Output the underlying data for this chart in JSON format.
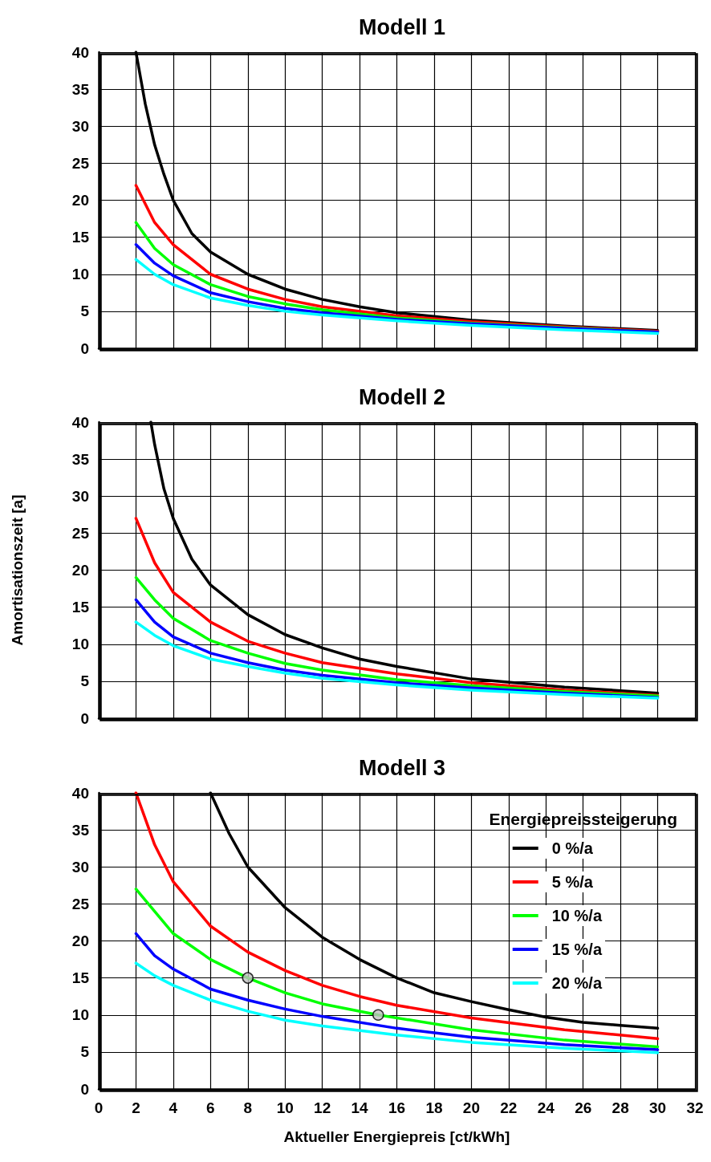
{
  "chart_data": [
    {
      "type": "line",
      "title": "Modell 1",
      "xlim": [
        0,
        32
      ],
      "xticks": [
        0,
        2,
        4,
        6,
        8,
        10,
        12,
        14,
        16,
        18,
        20,
        22,
        24,
        26,
        28,
        30,
        32
      ],
      "ylim": [
        0,
        40
      ],
      "yticks": [
        0,
        5,
        10,
        15,
        20,
        25,
        30,
        35,
        40
      ],
      "grid": true,
      "tick_labels": "y",
      "legend": false,
      "marker": "none",
      "line_style": "solid",
      "x": [
        2,
        2.5,
        3,
        3.5,
        4,
        5,
        6,
        8,
        10,
        12,
        14,
        16,
        20,
        25,
        30
      ],
      "series": [
        {
          "color": "#000000",
          "values": [
            40,
            33,
            27.5,
            23.5,
            20,
            15.5,
            13,
            10,
            8,
            6.6,
            5.6,
            4.8,
            3.8,
            3,
            2.4
          ]
        },
        {
          "color": "#ff0000",
          "x": [
            2,
            3,
            4,
            6,
            8,
            10,
            12,
            16,
            20,
            25,
            30
          ],
          "values": [
            22,
            17,
            14,
            10,
            8,
            6.6,
            5.6,
            4.4,
            3.6,
            2.9,
            2.3
          ]
        },
        {
          "color": "#00ff00",
          "x": [
            2,
            3,
            4,
            6,
            8,
            10,
            12,
            16,
            20,
            25,
            30
          ],
          "values": [
            17,
            13.5,
            11.3,
            8.6,
            7,
            6,
            5.2,
            4.1,
            3.4,
            2.8,
            2.2
          ]
        },
        {
          "color": "#0000ff",
          "x": [
            2,
            3,
            4,
            6,
            8,
            10,
            12,
            16,
            20,
            25,
            30
          ],
          "values": [
            14,
            11.5,
            9.8,
            7.5,
            6.3,
            5.4,
            4.8,
            3.9,
            3.3,
            2.7,
            2.2
          ]
        },
        {
          "color": "#00ffff",
          "x": [
            2,
            3,
            4,
            6,
            8,
            10,
            12,
            16,
            20,
            25,
            30
          ],
          "values": [
            12,
            10,
            8.6,
            6.8,
            5.8,
            5,
            4.5,
            3.7,
            3.1,
            2.5,
            2
          ]
        }
      ]
    },
    {
      "type": "line",
      "title": "Modell 2",
      "ylabel": "Amortisationszeit [a]",
      "xlim": [
        0,
        32
      ],
      "xticks": [
        0,
        2,
        4,
        6,
        8,
        10,
        12,
        14,
        16,
        18,
        20,
        22,
        24,
        26,
        28,
        30,
        32
      ],
      "ylim": [
        0,
        40
      ],
      "yticks": [
        0,
        5,
        10,
        15,
        20,
        25,
        30,
        35,
        40
      ],
      "grid": true,
      "tick_labels": "y",
      "legend": false,
      "marker": "none",
      "line_style": "solid",
      "x": [
        2,
        3,
        4,
        6,
        8,
        10,
        12,
        16,
        20,
        25,
        30
      ],
      "series": [
        {
          "color": "#000000",
          "x": [
            2.8,
            3,
            3.5,
            4,
            5,
            6,
            8,
            10,
            12,
            14,
            16,
            20,
            25,
            30
          ],
          "values": [
            40,
            37,
            31,
            27,
            21.5,
            18,
            14,
            11.3,
            9.5,
            8,
            7,
            5.3,
            4.2,
            3.4
          ]
        },
        {
          "color": "#ff0000",
          "values": [
            27,
            21,
            17,
            13,
            10.4,
            8.8,
            7.5,
            6,
            4.8,
            3.8,
            3.1
          ]
        },
        {
          "color": "#00ff00",
          "values": [
            19,
            16,
            13.5,
            10.5,
            8.8,
            7.4,
            6.5,
            5.2,
            4.4,
            3.6,
            3
          ]
        },
        {
          "color": "#0000ff",
          "values": [
            16,
            13,
            11,
            8.8,
            7.5,
            6.5,
            5.8,
            4.8,
            4.1,
            3.4,
            2.8
          ]
        },
        {
          "color": "#00ffff",
          "values": [
            13,
            11.2,
            9.8,
            8,
            7,
            6.1,
            5.4,
            4.5,
            3.8,
            3.2,
            2.7
          ]
        }
      ]
    },
    {
      "type": "line",
      "title": "Modell 3",
      "xlabel": "Aktueller Energiepreis [ct/kWh]",
      "legend_title": "Energiepreissteigerung",
      "xlim": [
        0,
        32
      ],
      "xticks": [
        0,
        2,
        4,
        6,
        8,
        10,
        12,
        14,
        16,
        18,
        20,
        22,
        24,
        26,
        28,
        30,
        32
      ],
      "ylim": [
        0,
        40
      ],
      "yticks": [
        0,
        5,
        10,
        15,
        20,
        25,
        30,
        35,
        40
      ],
      "grid": true,
      "legend": "top right",
      "marker": "none",
      "line_style": "solid",
      "x": [
        2,
        3,
        4,
        5,
        6,
        8,
        10,
        12,
        14,
        16,
        20,
        25,
        30
      ],
      "series": [
        {
          "name": "0 %/a",
          "color": "#000000",
          "x": [
            6,
            7,
            8,
            10,
            12,
            14,
            16,
            18,
            20,
            22,
            24,
            26,
            28,
            30
          ],
          "values": [
            40,
            34.5,
            30,
            24.5,
            20.5,
            17.5,
            15,
            13,
            11.8,
            10.7,
            9.7,
            9,
            8.6,
            8.2
          ]
        },
        {
          "name": "5 %/a",
          "color": "#ff0000",
          "values": [
            40,
            33,
            28,
            25,
            22,
            18.5,
            16,
            14,
            12.5,
            11.3,
            9.6,
            8,
            6.8
          ]
        },
        {
          "name": "10 %/a",
          "color": "#00ff00",
          "x": [
            2,
            3,
            4,
            6,
            8,
            10,
            12,
            15,
            20,
            25,
            30
          ],
          "values": [
            27,
            24,
            21,
            17.5,
            15,
            13,
            11.5,
            10,
            8,
            6.6,
            5.7
          ]
        },
        {
          "name": "15 %/a",
          "color": "#0000ff",
          "x": [
            2,
            3,
            4,
            6,
            8,
            10,
            12,
            16,
            20,
            25,
            30
          ],
          "values": [
            21,
            18,
            16.2,
            13.5,
            12,
            10.8,
            9.8,
            8.2,
            7,
            6,
            5.3
          ]
        },
        {
          "name": "20 %/a",
          "color": "#00ffff",
          "x": [
            2,
            3,
            4,
            6,
            8,
            10,
            12,
            16,
            20,
            25,
            30
          ],
          "values": [
            17,
            15.3,
            14,
            12,
            10.5,
            9.3,
            8.5,
            7.3,
            6.3,
            5.5,
            4.9
          ]
        },
        {
          "type": "scatter",
          "marker": "circle",
          "color": "#c0c0c0",
          "x": [
            8,
            15
          ],
          "values": [
            15,
            10
          ]
        }
      ]
    }
  ]
}
